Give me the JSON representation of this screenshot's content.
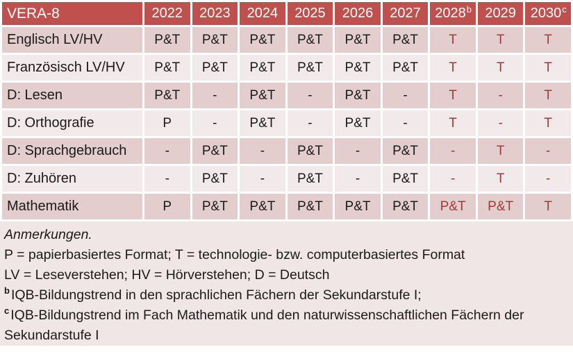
{
  "table": {
    "title": "VERA-8",
    "columns": [
      {
        "year": "2022",
        "sup": ""
      },
      {
        "year": "2023",
        "sup": ""
      },
      {
        "year": "2024",
        "sup": ""
      },
      {
        "year": "2025",
        "sup": ""
      },
      {
        "year": "2026",
        "sup": ""
      },
      {
        "year": "2027",
        "sup": ""
      },
      {
        "year": "2028",
        "sup": "b"
      },
      {
        "year": "2029",
        "sup": ""
      },
      {
        "year": "2030",
        "sup": "c"
      }
    ],
    "tech_start_index": 6,
    "rows": [
      {
        "label": "Englisch LV/HV",
        "values": [
          "P&T",
          "P&T",
          "P&T",
          "P&T",
          "P&T",
          "P&T",
          "T",
          "T",
          "T"
        ]
      },
      {
        "label": "Französisch LV/HV",
        "values": [
          "P&T",
          "P&T",
          "P&T",
          "P&T",
          "P&T",
          "P&T",
          "T",
          "T",
          "T"
        ]
      },
      {
        "label": "D: Lesen",
        "values": [
          "P&T",
          "-",
          "P&T",
          "-",
          "P&T",
          "-",
          "T",
          "-",
          "T"
        ]
      },
      {
        "label": "D: Orthografie",
        "values": [
          "P",
          "-",
          "P&T",
          "-",
          "P&T",
          "-",
          "T",
          "-",
          "T"
        ]
      },
      {
        "label": "D: Sprachgebrauch",
        "values": [
          "-",
          "P&T",
          "-",
          "P&T",
          "-",
          "P&T",
          "-",
          "T",
          "-"
        ]
      },
      {
        "label": "D: Zuhören",
        "values": [
          "-",
          "P&T",
          "-",
          "P&T",
          "-",
          "P&T",
          "-",
          "T",
          "-"
        ]
      },
      {
        "label": "Mathematik",
        "values": [
          "P",
          "P&T",
          "P&T",
          "P&T",
          "P&T",
          "P&T",
          "P&T",
          "P&T",
          "T"
        ]
      }
    ]
  },
  "notes": {
    "heading": "Anmerkungen.",
    "format_legend": "P = papierbasiertes Format; T = technologie- bzw. computerbasiertes Format",
    "abbrev_legend": "LV = Leseverstehen; HV = Hörverstehen; D = Deutsch",
    "note_b_marker": "b",
    "note_b_text": "IQB-Bildungstrend in den sprachlichen Fächern der Sekundarstufe I;",
    "note_c_marker": "c",
    "note_c_text": "IQB-Bildungstrend im Fach Mathematik und den naturwissenschaftlichen Fächern der Sekundarstufe I"
  },
  "colors": {
    "header_bg": "#c0504d",
    "header_text": "#ffffff",
    "band_dark": "#e4cecd",
    "band_light": "#f2eaea",
    "notes_bg": "#f1e6e6",
    "tech_text": "#9e3b39",
    "body_text": "#1a1a1a"
  }
}
